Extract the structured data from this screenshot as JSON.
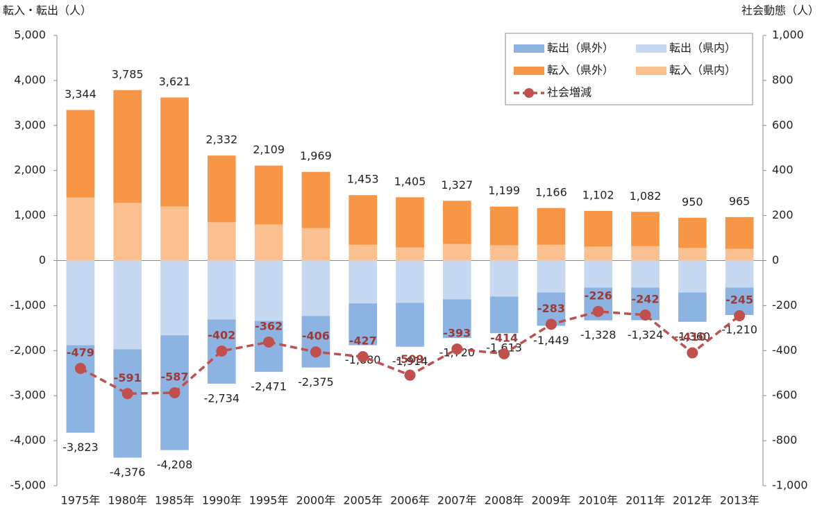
{
  "chart_data": {
    "type": "bar",
    "y_label": "転入・転出（人）",
    "y2_label": "社会動態（人）",
    "categories": [
      "1975年",
      "1980年",
      "1985年",
      "1990年",
      "1995年",
      "2000年",
      "2005年",
      "2006年",
      "2007年",
      "2008年",
      "2009年",
      "2010年",
      "2011年",
      "2012年",
      "2013年"
    ],
    "series": [
      {
        "name": "転出（県外）",
        "color": "#8db3e2",
        "values": [
          -1943,
          -2406,
          -2548,
          -1424,
          -1131,
          -1145,
          -930,
          -974,
          -860,
          -813,
          -739,
          -728,
          -724,
          -650,
          -610
        ]
      },
      {
        "name": "転出（県内）",
        "color": "#c6d9f1",
        "values": [
          -1880,
          -1970,
          -1660,
          -1310,
          -1340,
          -1230,
          -950,
          -940,
          -860,
          -800,
          -710,
          -600,
          -600,
          -710,
          -600
        ]
      },
      {
        "name": "転入（県外）",
        "color": "#f79646",
        "values": [
          1944,
          2505,
          2421,
          1482,
          1309,
          1249,
          1103,
          1115,
          957,
          859,
          816,
          792,
          762,
          670,
          705
        ]
      },
      {
        "name": "転入（県内）",
        "color": "#fac090",
        "values": [
          1400,
          1280,
          1200,
          850,
          800,
          720,
          350,
          290,
          370,
          340,
          350,
          310,
          320,
          280,
          260
        ]
      },
      {
        "name": "社会増減",
        "color": "#c0504d",
        "type": "line",
        "axis": "y2",
        "dashed": true,
        "values": [
          -479,
          -591,
          -587,
          -402,
          -362,
          -406,
          -427,
          -509,
          -393,
          -414,
          -283,
          -226,
          -242,
          -410,
          -245
        ]
      }
    ],
    "in_totals": [
      3344,
      3785,
      3621,
      2332,
      2109,
      1969,
      1453,
      1405,
      1327,
      1199,
      1166,
      1102,
      1082,
      950,
      965
    ],
    "in_total_labels": [
      "3,344",
      "3,785",
      "3,621",
      "2,332",
      "2,109",
      "1,969",
      "1,453",
      "1,405",
      "1,327",
      "1,199",
      "1,166",
      "1,102",
      "1,082",
      "950",
      "965"
    ],
    "out_totals": [
      -3823,
      -4376,
      -4208,
      -2734,
      -2471,
      -2375,
      -1880,
      -1914,
      -1720,
      -1613,
      -1449,
      -1328,
      -1324,
      -1360,
      -1210
    ],
    "out_total_labels": [
      "-3,823",
      "-4,376",
      "-4,208",
      "-2,734",
      "-2,471",
      "-2,375",
      "-1,880",
      "-1,914",
      "-1,720",
      "-1,613",
      "-1,449",
      "-1,328",
      "-1,324",
      "-1,360",
      "-1,210"
    ],
    "ylim": [
      -5000,
      5000
    ],
    "yticks": [
      {
        "value": -5000,
        "label": "-5,000"
      },
      {
        "value": -4000,
        "label": "-4,000"
      },
      {
        "value": -3000,
        "label": "-3,000"
      },
      {
        "value": -2000,
        "label": "-2,000"
      },
      {
        "value": -1000,
        "label": "-1,000"
      },
      0,
      {
        "value": 1000,
        "label": "1,000"
      },
      {
        "value": 2000,
        "label": "2,000"
      },
      {
        "value": 3000,
        "label": "3,000"
      },
      {
        "value": 4000,
        "label": "4,000"
      },
      {
        "value": 5000,
        "label": "5,000"
      }
    ],
    "y2lim": [
      -1000,
      1000
    ],
    "y2ticks": [
      {
        "value": -1000,
        "label": "-1,000"
      },
      -800,
      -600,
      -400,
      -200,
      0,
      200,
      400,
      600,
      800,
      {
        "value": 1000,
        "label": "1,000"
      }
    ],
    "legend": "upper right"
  }
}
